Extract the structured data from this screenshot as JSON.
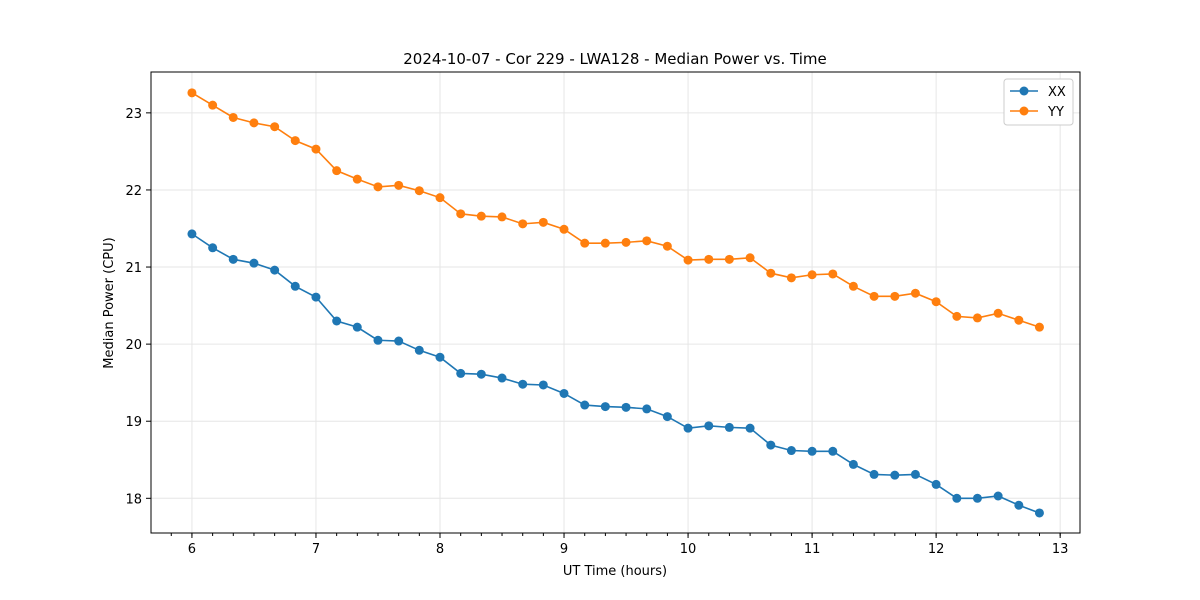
{
  "chart_data": {
    "type": "line",
    "title": "2024-10-07 - Cor 229 - LWA128 - Median Power vs. Time",
    "xlabel": "UT Time (hours)",
    "ylabel": "Median Power (CPU)",
    "xlim": [
      5.67,
      13.16
    ],
    "ylim": [
      17.55,
      23.53
    ],
    "xticks": [
      6,
      7,
      8,
      9,
      10,
      11,
      12,
      13
    ],
    "yticks": [
      18,
      19,
      20,
      21,
      22,
      23
    ],
    "x_minor_step": 0.16667,
    "grid": true,
    "legend_position": "top-right",
    "x": [
      6.0,
      6.167,
      6.333,
      6.5,
      6.667,
      6.833,
      7.0,
      7.167,
      7.333,
      7.5,
      7.667,
      7.833,
      8.0,
      8.167,
      8.333,
      8.5,
      8.667,
      8.833,
      9.0,
      9.167,
      9.333,
      9.5,
      9.667,
      9.833,
      10.0,
      10.167,
      10.333,
      10.5,
      10.667,
      10.833,
      11.0,
      11.167,
      11.333,
      11.5,
      11.667,
      11.833,
      12.0,
      12.167,
      12.333,
      12.5,
      12.667,
      12.833
    ],
    "series": [
      {
        "name": "XX",
        "color": "#1f77b4",
        "values": [
          21.43,
          21.25,
          21.1,
          21.05,
          20.96,
          20.75,
          20.61,
          20.3,
          20.22,
          20.05,
          20.04,
          19.92,
          19.83,
          19.62,
          19.61,
          19.56,
          19.48,
          19.47,
          19.36,
          19.21,
          19.19,
          19.18,
          19.16,
          19.06,
          18.91,
          18.94,
          18.92,
          18.91,
          18.69,
          18.62,
          18.61,
          18.61,
          18.44,
          18.31,
          18.3,
          18.31,
          18.18,
          18.0,
          18.0,
          18.03,
          17.91,
          17.81
        ]
      },
      {
        "name": "YY",
        "color": "#ff7f0e",
        "values": [
          23.26,
          23.1,
          22.94,
          22.87,
          22.82,
          22.64,
          22.53,
          22.25,
          22.14,
          22.04,
          22.06,
          21.99,
          21.9,
          21.69,
          21.66,
          21.65,
          21.56,
          21.58,
          21.49,
          21.31,
          21.31,
          21.32,
          21.34,
          21.27,
          21.09,
          21.1,
          21.1,
          21.12,
          20.92,
          20.86,
          20.9,
          20.91,
          20.75,
          20.62,
          20.62,
          20.66,
          20.55,
          20.36,
          20.34,
          20.4,
          20.31,
          20.22
        ]
      }
    ]
  }
}
